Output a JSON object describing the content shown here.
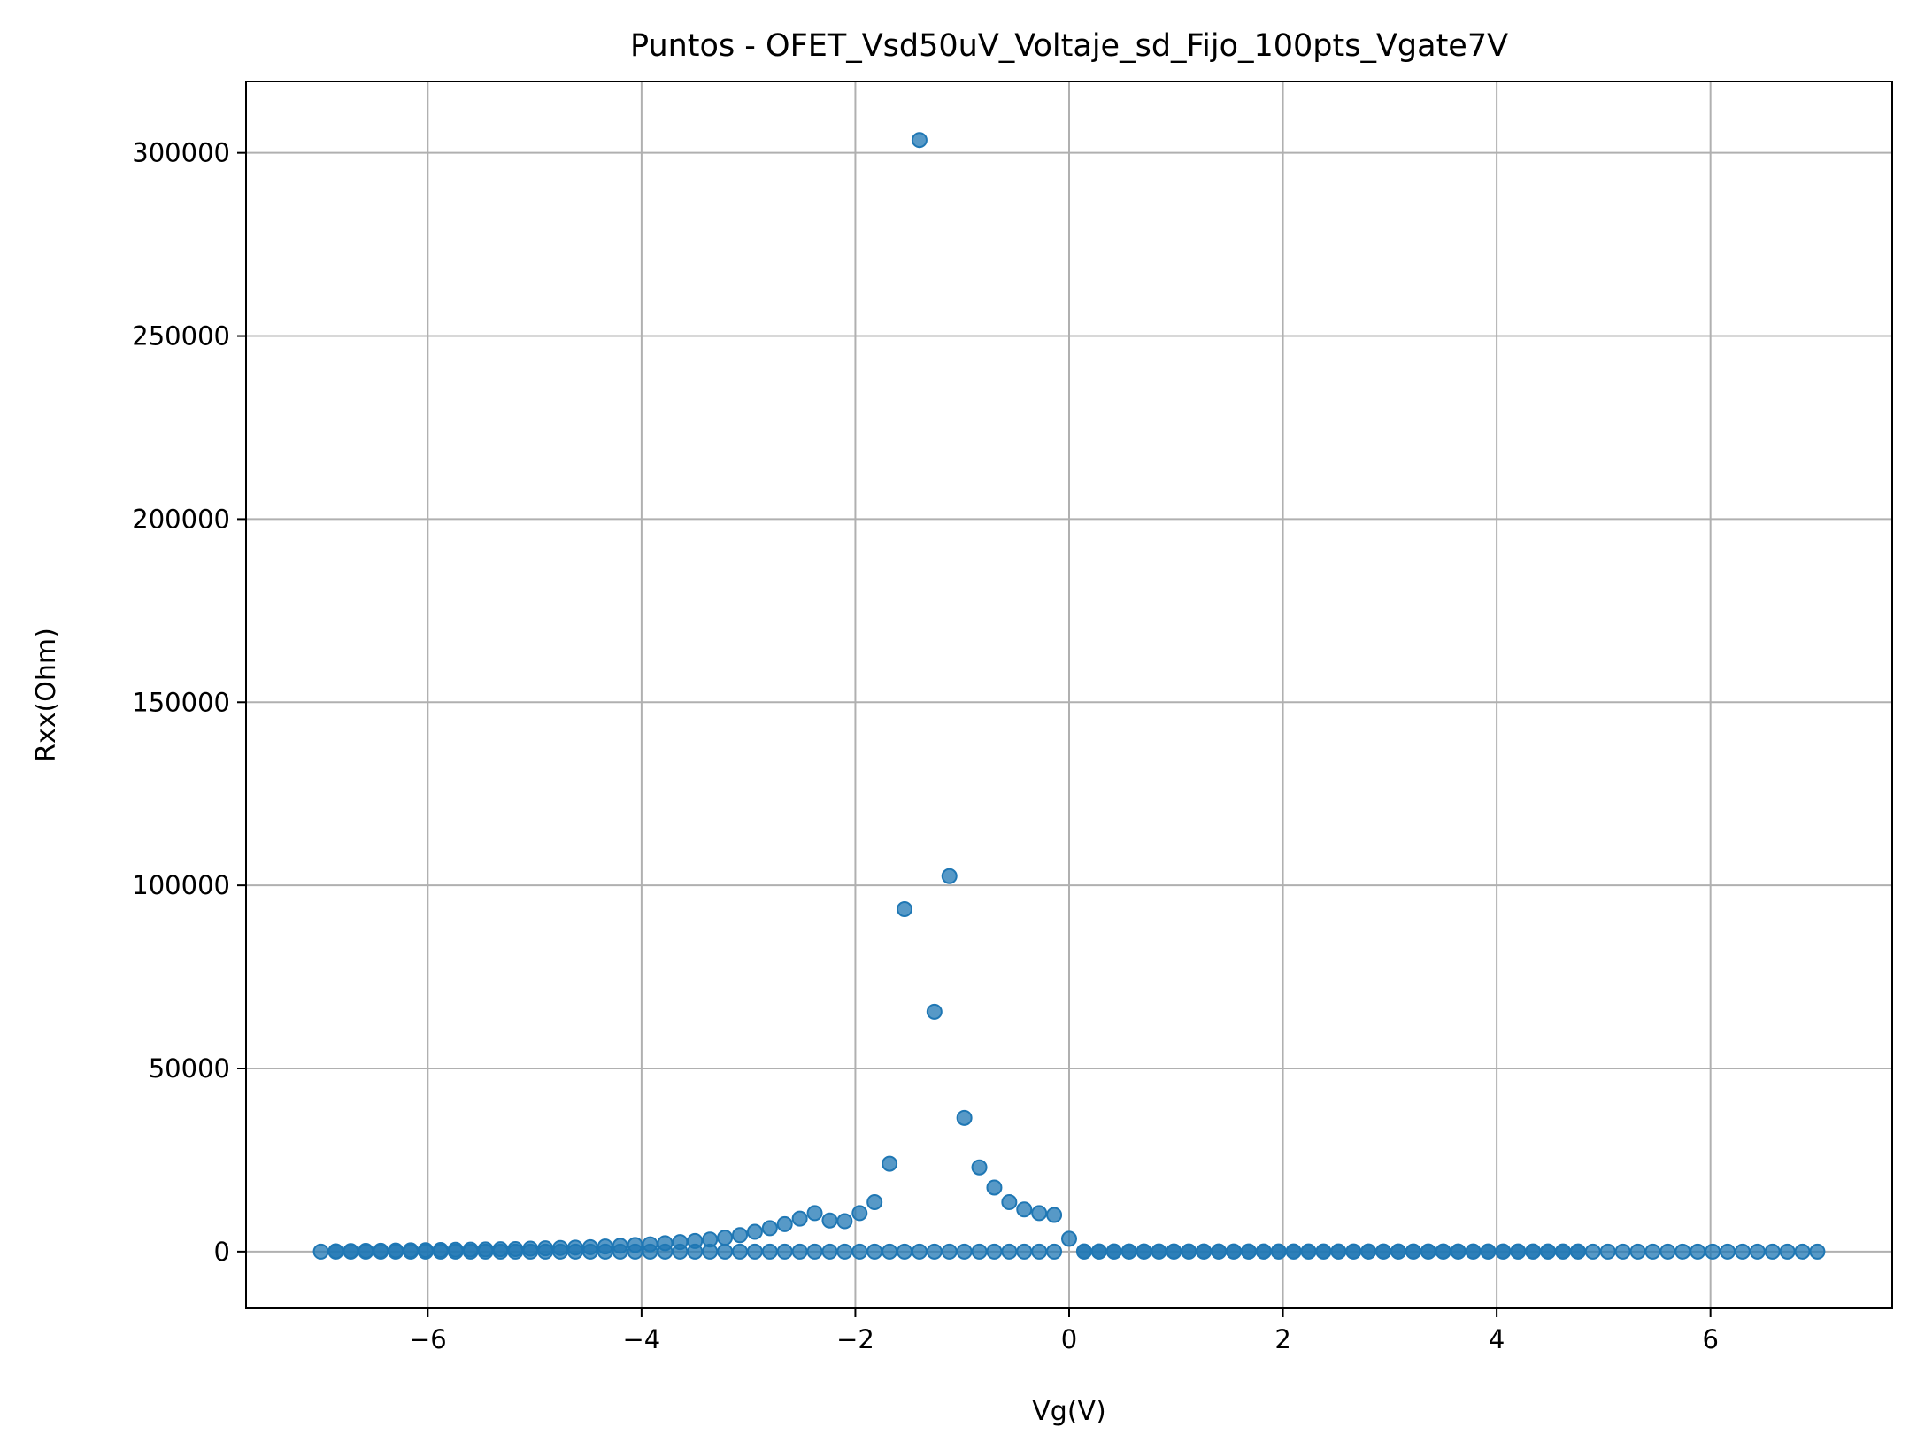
{
  "chart_data": {
    "type": "scatter",
    "title": "Puntos - OFET_Vsd50uV_Voltaje_sd_Fijo_100pts_Vgate7V",
    "xlabel": "Vg(V)",
    "ylabel": "Rxx(Ohm)",
    "xlim": [
      -7.7,
      7.7
    ],
    "ylim": [
      -15500,
      319500
    ],
    "grid": true,
    "legend": "none",
    "point_color": "#1f77b4",
    "x_ticks": [
      {
        "value": -6,
        "label": "−6"
      },
      {
        "value": -4,
        "label": "−4"
      },
      {
        "value": -2,
        "label": "−2"
      },
      {
        "value": 0,
        "label": "0"
      },
      {
        "value": 2,
        "label": "2"
      },
      {
        "value": 4,
        "label": "4"
      },
      {
        "value": 6,
        "label": "6"
      }
    ],
    "y_ticks": [
      {
        "value": 0,
        "label": "0"
      },
      {
        "value": 50000,
        "label": "50000"
      },
      {
        "value": 100000,
        "label": "100000"
      },
      {
        "value": 150000,
        "label": "150000"
      },
      {
        "value": 200000,
        "label": "200000"
      },
      {
        "value": 250000,
        "label": "250000"
      },
      {
        "value": 300000,
        "label": "300000"
      }
    ],
    "series": [
      {
        "x": [
          -7.0,
          -6.86,
          -6.72,
          -6.58,
          -6.44,
          -6.3,
          -6.16,
          -6.02,
          -5.88,
          -5.74,
          -5.6,
          -5.46,
          -5.32,
          -5.18,
          -5.04,
          -4.9,
          -4.76,
          -4.62,
          -4.48,
          -4.34,
          -4.2,
          -4.06,
          -3.92,
          -3.78,
          -3.64,
          -3.5,
          -3.36,
          -3.22,
          -3.08,
          -2.94,
          -2.8,
          -2.66,
          -2.52,
          -2.38,
          -2.24,
          -2.1,
          -1.96,
          -1.82,
          -1.68,
          -1.54,
          -1.4,
          -1.26,
          -1.12,
          -0.98,
          -0.84,
          -0.7,
          -0.56,
          -0.42,
          -0.28,
          -0.14,
          0.0,
          -6.86,
          -6.72,
          -6.58,
          -6.44,
          -6.3,
          -6.16,
          -6.02,
          -5.88,
          -5.74,
          -5.6,
          -5.46,
          -5.32,
          -5.18,
          -5.04,
          -4.9,
          -4.76,
          -4.62,
          -4.48,
          -4.34,
          -4.2,
          -4.06,
          -3.92,
          -3.78,
          -3.64,
          -3.5,
          -3.36,
          -3.22,
          -3.08,
          -2.94,
          -2.8,
          -2.66,
          -2.52,
          -2.38,
          -2.24,
          -2.1,
          -1.96,
          -1.82,
          -1.68,
          -1.54,
          -1.4,
          -1.26,
          -1.12,
          -0.98,
          -0.84,
          -0.7,
          -0.56,
          -0.42,
          -0.28,
          -0.14,
          0.14,
          0.28,
          0.42,
          0.56,
          0.7,
          0.84,
          0.98,
          1.12,
          1.26,
          1.4,
          1.54,
          1.68,
          1.82,
          1.96,
          2.1,
          2.24,
          2.38,
          2.52,
          2.66,
          2.8,
          2.94,
          3.08,
          3.22,
          3.36,
          3.5,
          3.64,
          3.78,
          3.92,
          4.06,
          4.2,
          4.34,
          4.48,
          4.62,
          4.76,
          4.9,
          5.04,
          5.18,
          5.32,
          5.46,
          5.6,
          5.74,
          5.88,
          6.02,
          6.16,
          6.3,
          6.44,
          6.58,
          6.72,
          6.86,
          7.0,
          0.14,
          0.28,
          0.42,
          0.56,
          0.7,
          0.84,
          0.98,
          1.12,
          1.26,
          1.4,
          1.54,
          1.68,
          1.82,
          1.96,
          2.1,
          2.24,
          2.38,
          2.52,
          2.66,
          2.8,
          2.94,
          3.08,
          3.22,
          3.36,
          3.5,
          3.64,
          3.78,
          3.92,
          4.06,
          4.2,
          4.34,
          4.48,
          4.62,
          4.76
        ],
        "y": [
          0,
          0,
          0,
          0,
          0,
          0,
          0,
          0,
          0,
          0,
          0,
          0,
          0,
          0,
          0,
          0,
          0,
          0,
          0,
          0,
          0,
          0,
          0,
          0,
          0,
          0,
          0,
          0,
          0,
          0,
          0,
          0,
          0,
          0,
          0,
          0,
          0,
          0,
          0,
          0,
          0,
          0,
          0,
          0,
          0,
          0,
          0,
          0,
          0,
          0,
          3500,
          100,
          150,
          200,
          250,
          300,
          350,
          400,
          450,
          500,
          550,
          600,
          650,
          700,
          800,
          900,
          1000,
          1100,
          1200,
          1400,
          1600,
          1800,
          2000,
          2300,
          2600,
          2900,
          3300,
          3800,
          4500,
          5400,
          6400,
          7500,
          9000,
          10500,
          8500,
          8300,
          10500,
          13500,
          24000,
          93500,
          303500,
          65500,
          102500,
          36500,
          23000,
          17500,
          13500,
          11500,
          10500,
          10000,
          0,
          0,
          0,
          0,
          0,
          0,
          0,
          0,
          0,
          0,
          0,
          0,
          0,
          0,
          0,
          0,
          0,
          0,
          0,
          0,
          0,
          0,
          0,
          0,
          0,
          0,
          0,
          0,
          0,
          0,
          0,
          0,
          0,
          0,
          0,
          0,
          0,
          0,
          0,
          0,
          0,
          0,
          0,
          0,
          0,
          0,
          0,
          0,
          0,
          0,
          50,
          50,
          50,
          50,
          50,
          50,
          50,
          50,
          50,
          50,
          50,
          50,
          50,
          50,
          50,
          50,
          50,
          50,
          50,
          50,
          50,
          50,
          50,
          50,
          50,
          50,
          50,
          50,
          50,
          50,
          50,
          50,
          50,
          50
        ]
      }
    ]
  }
}
